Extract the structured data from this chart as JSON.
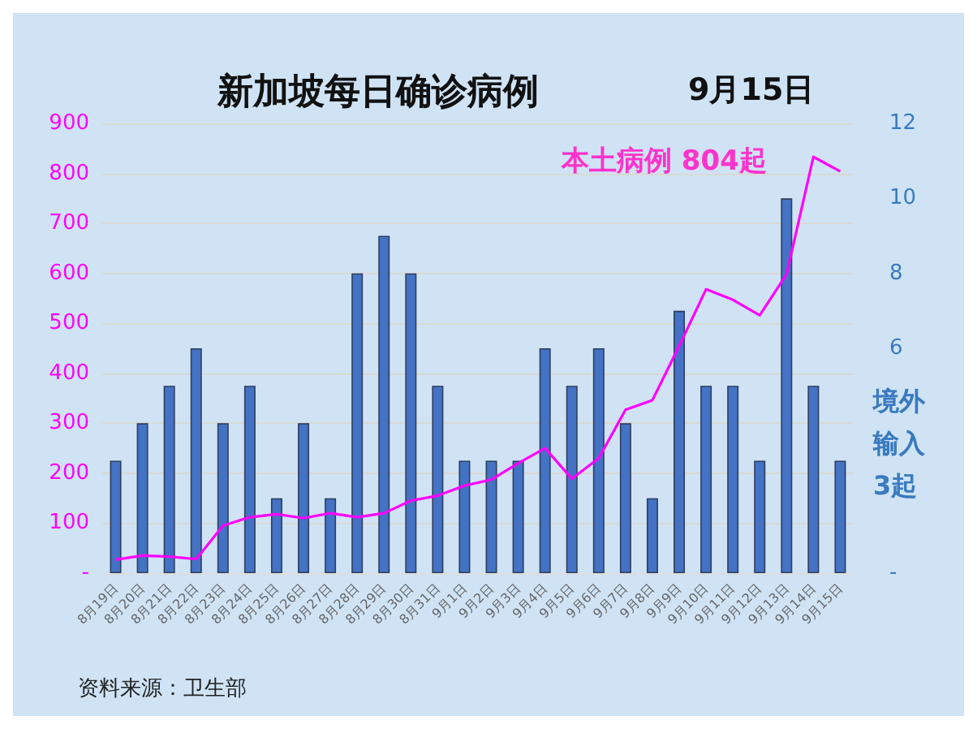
{
  "chart_data": {
    "type": "bar",
    "title": "新加坡每日确诊病例",
    "subtitle": "9月15日",
    "categories": [
      "8月19日",
      "8月20日",
      "8月21日",
      "8月22日",
      "8月23日",
      "8月24日",
      "8月25日",
      "8月26日",
      "8月27日",
      "8月28日",
      "8月29日",
      "8月30日",
      "8月31日",
      "9月1日",
      "9月2日",
      "9月3日",
      "9月4日",
      "9月5日",
      "9月6日",
      "9月7日",
      "9月8日",
      "9月9日",
      "9月10日",
      "9月11日",
      "9月12日",
      "9月13日",
      "9月14日",
      "9月15日"
    ],
    "series": [
      {
        "axis": "y2",
        "color": "#4472c4",
        "values": [
          3,
          4,
          5,
          6,
          4,
          5,
          2,
          4,
          2,
          8,
          9,
          8,
          5,
          3,
          3,
          3,
          6,
          5,
          6,
          4,
          2,
          7,
          5,
          5,
          3,
          10,
          5,
          3
        ]
      },
      {
        "type": "line",
        "color": "#ff00ff",
        "values": [
          27,
          35,
          33,
          28,
          95,
          112,
          118,
          110,
          120,
          112,
          120,
          145,
          155,
          175,
          187,
          220,
          250,
          189,
          230,
          327,
          346,
          455,
          568,
          547,
          516,
          598,
          833,
          804
        ]
      }
    ],
    "ylim": [
      0,
      900
    ],
    "yticks": [
      {
        "value": 0,
        "label": "-"
      },
      100,
      200,
      300,
      400,
      500,
      600,
      700,
      800,
      900
    ],
    "y2lim": [
      0,
      12
    ],
    "y2ticks": [
      {
        "value": 0,
        "label": "-"
      },
      6,
      8,
      10,
      12
    ],
    "grid": "y",
    "marker": "none",
    "annotations": [
      "本土病例 804起",
      "境外输入3起",
      "资料来源：卫生部"
    ]
  }
}
